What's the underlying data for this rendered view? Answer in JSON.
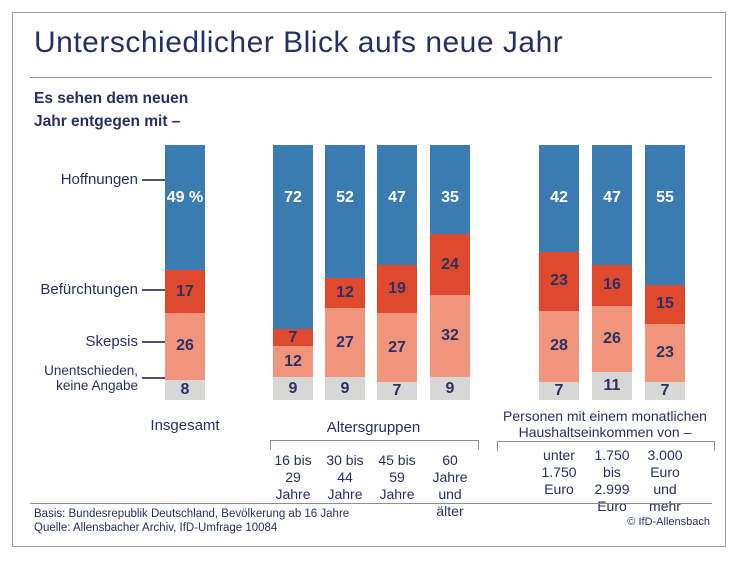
{
  "title": "Unterschiedlicher Blick aufs neue Jahr",
  "subtitle": {
    "line1": "Es sehen dem neuen",
    "line2": "Jahr entgegen mit –"
  },
  "colors": {
    "series": [
      "#3A7CB2",
      "#DF4A2F",
      "#F0957C",
      "#D7D7D5"
    ],
    "text_navy": "#243165",
    "value_navy": "#2B3066",
    "value_white": "#FFFFFF",
    "rule_gray": "#8F8F8F"
  },
  "legend": [
    {
      "lines": [
        "Hoffnungen"
      ]
    },
    {
      "lines": [
        "Befürchtungen"
      ]
    },
    {
      "lines": [
        "Skepsis"
      ]
    },
    {
      "lines": [
        "Unentschieden,",
        "keine Angabe"
      ]
    }
  ],
  "chart_data": {
    "type": "bar",
    "stacked": true,
    "unit": "percent",
    "ylim": [
      0,
      100
    ],
    "series_names": [
      "Hoffnungen",
      "Befürchtungen",
      "Skepsis",
      "Unentschieden, keine Angabe"
    ],
    "groups": [
      {
        "header_lines": [],
        "bars": [
          {
            "label_lines": [
              "Insgesamt"
            ],
            "values": [
              49,
              17,
              26,
              8
            ],
            "value_labels": [
              "49 %",
              "17",
              "26",
              "8"
            ]
          }
        ]
      },
      {
        "header_lines": [
          "Altersgruppen"
        ],
        "bars": [
          {
            "label_lines": [
              "16 bis",
              "29",
              "Jahre"
            ],
            "values": [
              72,
              7,
              12,
              9
            ]
          },
          {
            "label_lines": [
              "30 bis",
              "44",
              "Jahre"
            ],
            "values": [
              52,
              12,
              27,
              9
            ]
          },
          {
            "label_lines": [
              "45 bis",
              "59",
              "Jahre"
            ],
            "values": [
              47,
              19,
              27,
              7
            ]
          },
          {
            "label_lines": [
              "60",
              "Jahre",
              "und",
              "älter"
            ],
            "values": [
              35,
              24,
              32,
              9
            ]
          }
        ]
      },
      {
        "header_lines": [
          "Personen mit einem monatlichen",
          "Haushaltseinkommen von –"
        ],
        "bars": [
          {
            "label_lines": [
              "unter",
              "1.750",
              "Euro"
            ],
            "values": [
              42,
              23,
              28,
              7
            ]
          },
          {
            "label_lines": [
              "1.750",
              "bis",
              "2.999",
              "Euro"
            ],
            "values": [
              47,
              16,
              26,
              11
            ]
          },
          {
            "label_lines": [
              "3.000",
              "Euro",
              "und",
              "mehr"
            ],
            "values": [
              55,
              15,
              23,
              7
            ]
          }
        ]
      }
    ]
  },
  "footer": {
    "basis": "Basis: Bundesrepublik Deutschland, Bevölkerung ab 16 Jahre",
    "quelle": "Quelle: Allensbacher Archiv, IfD-Umfrage 10084",
    "copyright": "© IfD-Allensbach"
  }
}
